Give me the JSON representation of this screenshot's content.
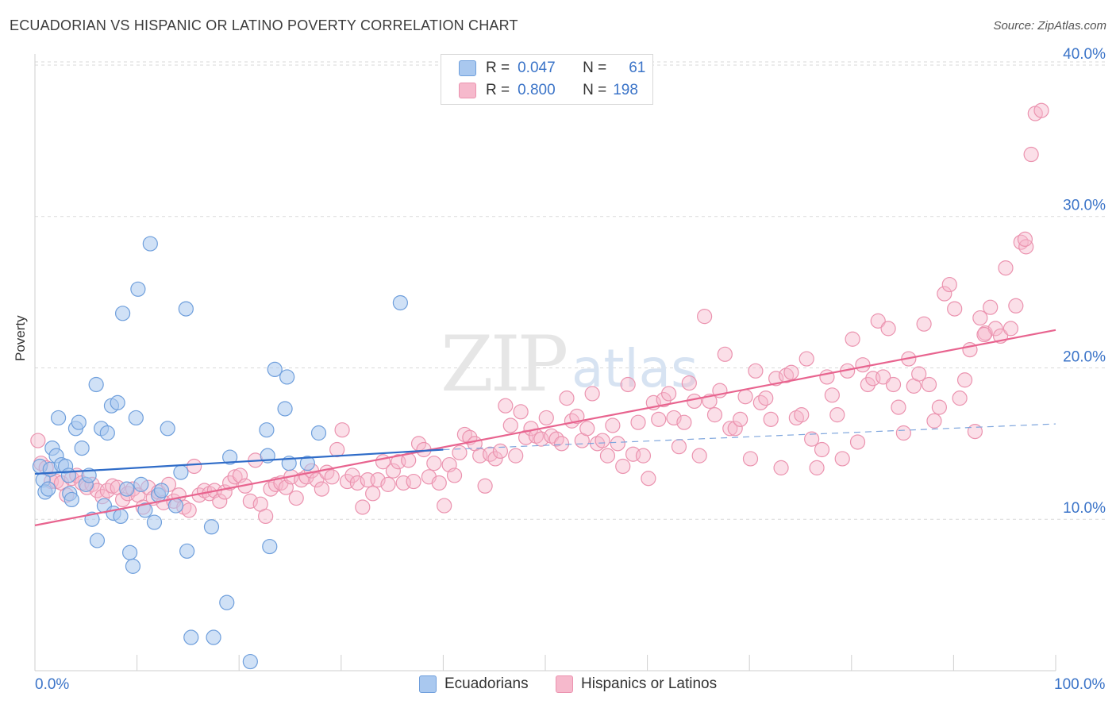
{
  "title": "ECUADORIAN VS HISPANIC OR LATINO POVERTY CORRELATION CHART",
  "source": "Source: ZipAtlas.com",
  "legend": {
    "row1": {
      "r_label": "R =",
      "r_value": "0.047",
      "n_label": "N =",
      "n_value": "61"
    },
    "row2": {
      "r_label": "R =",
      "r_value": "0.800",
      "n_label": "N =",
      "n_value": "198"
    }
  },
  "bottom_legend": [
    "Ecuadorians",
    "Hispanics or Latinos"
  ],
  "x_labels": {
    "left": "0.0%",
    "right": "100.0%"
  },
  "colors": {
    "blue_fill": "#a9c8ef",
    "blue_stroke": "#6f9fdc",
    "blue_line": "#2f6cc8",
    "pink_fill": "#f6b9cc",
    "pink_stroke": "#eb93af",
    "pink_line": "#e8648f",
    "grid": "#dadada",
    "axis_label": "#3b74c8"
  },
  "chart_data": {
    "type": "scatter",
    "title": "ECUADORIAN VS HISPANIC OR LATINO POVERTY CORRELATION CHART",
    "xlabel": "",
    "ylabel": "Poverty",
    "xlim": [
      0,
      100
    ],
    "ylim": [
      0,
      40
    ],
    "y_ticks": [
      "10.0%",
      "20.0%",
      "30.0%",
      "40.0%"
    ],
    "y_tick_values": [
      10,
      20,
      30,
      40
    ],
    "x_tick_labels": [
      "0.0%",
      "100.0%"
    ],
    "grid": true,
    "legend_position": "top-center",
    "series": [
      {
        "name": "Ecuadorians",
        "r": 0.047,
        "n": 61,
        "trend": {
          "x": [
            0,
            40
          ],
          "y": [
            13.0,
            14.6
          ]
        },
        "points": [
          [
            0.5,
            13.5
          ],
          [
            0.8,
            12.6
          ],
          [
            1.0,
            11.8
          ],
          [
            1.3,
            12.0
          ],
          [
            1.5,
            13.3
          ],
          [
            1.7,
            14.7
          ],
          [
            2.1,
            14.2
          ],
          [
            2.3,
            16.7
          ],
          [
            2.6,
            13.6
          ],
          [
            3.0,
            13.5
          ],
          [
            3.3,
            12.9
          ],
          [
            3.4,
            11.7
          ],
          [
            3.6,
            11.3
          ],
          [
            4.0,
            16.0
          ],
          [
            4.3,
            16.4
          ],
          [
            4.6,
            14.7
          ],
          [
            5.0,
            12.3
          ],
          [
            5.3,
            12.9
          ],
          [
            5.6,
            10.0
          ],
          [
            6.0,
            18.9
          ],
          [
            6.1,
            8.6
          ],
          [
            6.5,
            16.0
          ],
          [
            6.8,
            10.9
          ],
          [
            7.1,
            15.7
          ],
          [
            7.5,
            17.5
          ],
          [
            7.7,
            10.4
          ],
          [
            8.1,
            17.7
          ],
          [
            8.4,
            10.2
          ],
          [
            8.6,
            23.6
          ],
          [
            9.0,
            12.0
          ],
          [
            9.3,
            7.8
          ],
          [
            9.6,
            6.9
          ],
          [
            9.9,
            16.7
          ],
          [
            10.1,
            25.2
          ],
          [
            10.4,
            12.3
          ],
          [
            10.8,
            10.6
          ],
          [
            11.3,
            28.2
          ],
          [
            11.7,
            9.8
          ],
          [
            12.1,
            11.6
          ],
          [
            12.4,
            11.9
          ],
          [
            13.0,
            16.0
          ],
          [
            13.8,
            10.9
          ],
          [
            14.3,
            13.1
          ],
          [
            14.8,
            23.9
          ],
          [
            14.9,
            7.9
          ],
          [
            15.3,
            2.2
          ],
          [
            17.3,
            9.5
          ],
          [
            17.5,
            2.2
          ],
          [
            18.8,
            4.5
          ],
          [
            19.1,
            14.1
          ],
          [
            21.1,
            0.6
          ],
          [
            22.7,
            15.9
          ],
          [
            22.8,
            14.2
          ],
          [
            23.0,
            8.2
          ],
          [
            23.5,
            19.9
          ],
          [
            24.5,
            17.3
          ],
          [
            24.7,
            19.4
          ],
          [
            24.9,
            13.7
          ],
          [
            26.7,
            13.7
          ],
          [
            27.8,
            15.7
          ],
          [
            35.8,
            24.3
          ]
        ]
      },
      {
        "name": "Hispanics or Latinos",
        "r": 0.8,
        "n": 198,
        "trend": {
          "x": [
            0,
            100
          ],
          "y": [
            9.6,
            22.5
          ]
        },
        "trend_ext": {
          "x": [
            40,
            100
          ],
          "y": [
            14.6,
            16.3
          ]
        },
        "points": [
          [
            0.3,
            15.2
          ],
          [
            0.6,
            13.7
          ],
          [
            1.1,
            13.4
          ],
          [
            1.6,
            12.5
          ],
          [
            2.1,
            12.5
          ],
          [
            2.6,
            12.4
          ],
          [
            3.1,
            11.6
          ],
          [
            3.6,
            12.7
          ],
          [
            4.1,
            12.9
          ],
          [
            4.6,
            12.4
          ],
          [
            5.1,
            12.1
          ],
          [
            5.6,
            12.3
          ],
          [
            6.1,
            11.9
          ],
          [
            6.6,
            11.5
          ],
          [
            7.1,
            11.9
          ],
          [
            7.6,
            12.2
          ],
          [
            8.1,
            12.1
          ],
          [
            8.6,
            11.3
          ],
          [
            9.1,
            11.7
          ],
          [
            9.6,
            12.0
          ],
          [
            10.1,
            11.6
          ],
          [
            10.6,
            10.8
          ],
          [
            11.1,
            12.1
          ],
          [
            11.6,
            11.4
          ],
          [
            12.1,
            11.8
          ],
          [
            12.6,
            11.1
          ],
          [
            13.1,
            12.3
          ],
          [
            13.6,
            11.2
          ],
          [
            14.1,
            11.6
          ],
          [
            14.6,
            10.8
          ],
          [
            15.1,
            10.6
          ],
          [
            15.6,
            13.5
          ],
          [
            16.1,
            11.6
          ],
          [
            16.6,
            11.9
          ],
          [
            17.1,
            11.7
          ],
          [
            17.6,
            11.9
          ],
          [
            18.1,
            11.2
          ],
          [
            18.6,
            11.8
          ],
          [
            19.1,
            12.4
          ],
          [
            19.6,
            12.8
          ],
          [
            20.1,
            12.9
          ],
          [
            20.6,
            12.2
          ],
          [
            21.1,
            11.2
          ],
          [
            21.6,
            13.9
          ],
          [
            22.1,
            11.0
          ],
          [
            22.6,
            10.2
          ],
          [
            23.1,
            12.0
          ],
          [
            23.6,
            12.3
          ],
          [
            24.1,
            12.4
          ],
          [
            24.6,
            12.1
          ],
          [
            25.1,
            12.8
          ],
          [
            25.6,
            11.4
          ],
          [
            26.1,
            12.6
          ],
          [
            26.6,
            12.8
          ],
          [
            27.1,
            13.2
          ],
          [
            27.6,
            12.6
          ],
          [
            28.1,
            12.0
          ],
          [
            28.6,
            13.1
          ],
          [
            29.1,
            12.8
          ],
          [
            29.6,
            14.6
          ],
          [
            30.1,
            15.9
          ],
          [
            30.6,
            12.5
          ],
          [
            31.1,
            12.9
          ],
          [
            31.6,
            12.4
          ],
          [
            32.1,
            10.8
          ],
          [
            32.6,
            12.6
          ],
          [
            33.1,
            11.7
          ],
          [
            33.6,
            12.6
          ],
          [
            34.1,
            13.8
          ],
          [
            34.6,
            12.3
          ],
          [
            35.1,
            13.2
          ],
          [
            35.6,
            13.8
          ],
          [
            36.1,
            12.4
          ],
          [
            36.6,
            13.9
          ],
          [
            37.1,
            12.5
          ],
          [
            37.6,
            15.0
          ],
          [
            38.1,
            14.6
          ],
          [
            38.6,
            12.8
          ],
          [
            39.1,
            13.7
          ],
          [
            39.6,
            12.4
          ],
          [
            40.1,
            10.9
          ],
          [
            40.6,
            13.6
          ],
          [
            41.1,
            12.9
          ],
          [
            41.6,
            14.4
          ],
          [
            42.1,
            15.6
          ],
          [
            42.6,
            15.4
          ],
          [
            43.1,
            15.0
          ],
          [
            43.6,
            14.2
          ],
          [
            44.1,
            12.2
          ],
          [
            44.6,
            14.3
          ],
          [
            45.1,
            14.0
          ],
          [
            45.6,
            14.5
          ],
          [
            46.1,
            17.5
          ],
          [
            46.6,
            16.2
          ],
          [
            47.1,
            14.2
          ],
          [
            47.6,
            17.1
          ],
          [
            48.1,
            15.4
          ],
          [
            48.6,
            16.0
          ],
          [
            49.1,
            15.5
          ],
          [
            49.6,
            15.3
          ],
          [
            50.1,
            16.7
          ],
          [
            50.6,
            15.5
          ],
          [
            51.1,
            15.3
          ],
          [
            51.6,
            15.0
          ],
          [
            52.1,
            18.0
          ],
          [
            52.6,
            16.5
          ],
          [
            53.1,
            16.8
          ],
          [
            53.6,
            15.2
          ],
          [
            54.1,
            16.0
          ],
          [
            54.6,
            18.3
          ],
          [
            55.1,
            15.0
          ],
          [
            55.6,
            15.2
          ],
          [
            56.1,
            14.2
          ],
          [
            56.6,
            16.2
          ],
          [
            57.1,
            15.0
          ],
          [
            57.6,
            13.5
          ],
          [
            58.1,
            18.9
          ],
          [
            58.6,
            14.3
          ],
          [
            59.1,
            16.4
          ],
          [
            59.6,
            14.2
          ],
          [
            60.1,
            12.7
          ],
          [
            60.6,
            17.7
          ],
          [
            61.1,
            16.6
          ],
          [
            61.6,
            17.9
          ],
          [
            62.1,
            18.3
          ],
          [
            62.6,
            16.7
          ],
          [
            63.1,
            14.8
          ],
          [
            63.6,
            16.4
          ],
          [
            64.1,
            19.0
          ],
          [
            64.6,
            17.8
          ],
          [
            65.1,
            14.2
          ],
          [
            65.6,
            23.4
          ],
          [
            66.1,
            17.8
          ],
          [
            66.6,
            16.9
          ],
          [
            67.1,
            18.5
          ],
          [
            67.6,
            20.9
          ],
          [
            68.1,
            16.0
          ],
          [
            68.6,
            16.0
          ],
          [
            69.1,
            16.6
          ],
          [
            69.6,
            18.1
          ],
          [
            70.1,
            14.0
          ],
          [
            70.6,
            19.8
          ],
          [
            71.1,
            17.7
          ],
          [
            71.6,
            18.0
          ],
          [
            72.1,
            16.6
          ],
          [
            72.6,
            19.3
          ],
          [
            73.1,
            13.4
          ],
          [
            73.6,
            19.5
          ],
          [
            74.1,
            19.7
          ],
          [
            74.6,
            16.7
          ],
          [
            75.1,
            16.9
          ],
          [
            75.6,
            20.6
          ],
          [
            76.1,
            15.3
          ],
          [
            76.6,
            13.4
          ],
          [
            77.1,
            14.6
          ],
          [
            77.6,
            19.4
          ],
          [
            78.1,
            18.2
          ],
          [
            78.6,
            16.9
          ],
          [
            79.1,
            14.0
          ],
          [
            79.6,
            19.8
          ],
          [
            80.1,
            21.9
          ],
          [
            80.6,
            15.1
          ],
          [
            81.1,
            20.2
          ],
          [
            81.6,
            18.9
          ],
          [
            82.1,
            19.3
          ],
          [
            82.6,
            23.1
          ],
          [
            83.1,
            19.4
          ],
          [
            83.6,
            22.6
          ],
          [
            84.1,
            18.9
          ],
          [
            84.6,
            17.4
          ],
          [
            85.1,
            15.7
          ],
          [
            85.6,
            20.6
          ],
          [
            86.1,
            18.8
          ],
          [
            86.6,
            19.6
          ],
          [
            87.1,
            22.9
          ],
          [
            87.6,
            18.9
          ],
          [
            88.1,
            16.5
          ],
          [
            88.6,
            17.4
          ],
          [
            89.1,
            24.9
          ],
          [
            89.6,
            25.5
          ],
          [
            90.1,
            23.9
          ],
          [
            90.6,
            18.0
          ],
          [
            91.1,
            19.2
          ],
          [
            91.6,
            21.2
          ],
          [
            92.1,
            15.8
          ],
          [
            92.6,
            23.3
          ],
          [
            93.1,
            22.3
          ],
          [
            93.6,
            24.0
          ],
          [
            94.1,
            22.6
          ],
          [
            94.6,
            22.1
          ],
          [
            95.1,
            26.6
          ],
          [
            95.6,
            22.6
          ],
          [
            96.1,
            24.1
          ],
          [
            96.6,
            28.3
          ],
          [
            97.1,
            28.0
          ],
          [
            97.6,
            34.1
          ],
          [
            98.0,
            36.8
          ],
          [
            98.6,
            37.0
          ],
          [
            97.0,
            28.5
          ],
          [
            93.0,
            22.2
          ]
        ]
      }
    ]
  }
}
